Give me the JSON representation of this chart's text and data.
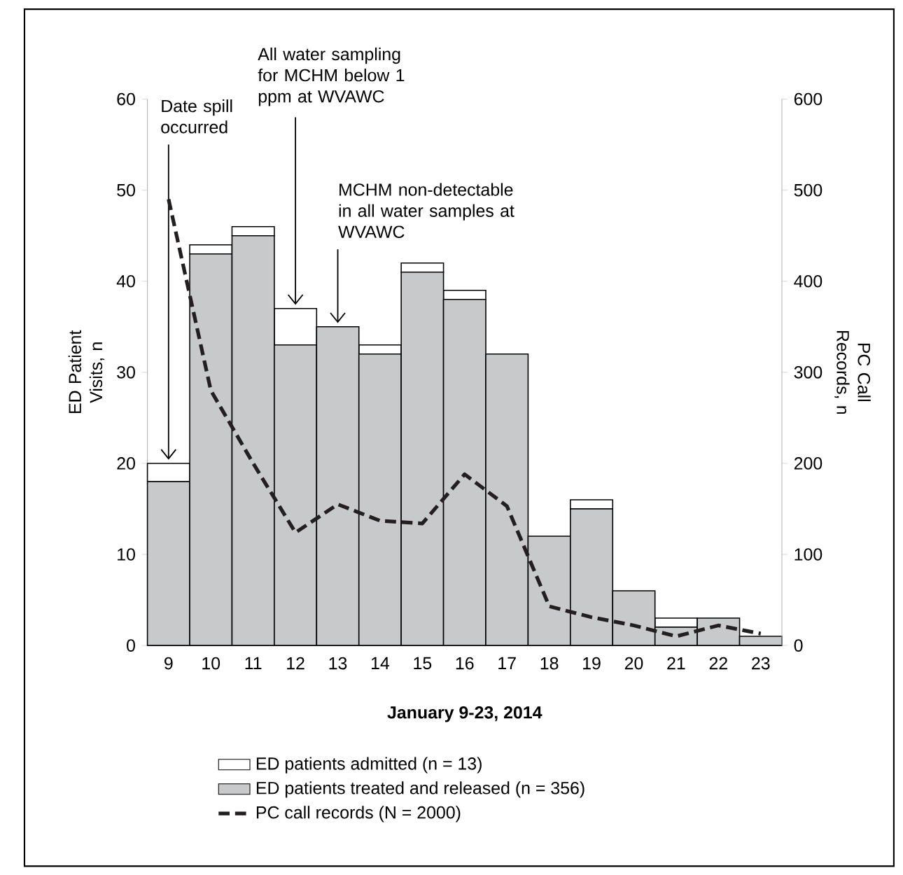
{
  "chart_data": {
    "type": "bar",
    "stacked": true,
    "xlabel": "January 9-23, 2014",
    "ylabel": "ED Patient Visits, n",
    "y2label": "PC Call Records, n",
    "categories": [
      "9",
      "10",
      "11",
      "12",
      "13",
      "14",
      "15",
      "16",
      "17",
      "18",
      "19",
      "20",
      "21",
      "22",
      "23"
    ],
    "ylim": [
      0,
      60
    ],
    "yticks": [
      0,
      10,
      20,
      30,
      40,
      50,
      60
    ],
    "y2lim": [
      0,
      600
    ],
    "y2ticks": [
      0,
      100,
      200,
      300,
      400,
      500,
      600
    ],
    "legend": "bottom",
    "grid": false,
    "series": [
      {
        "name": "ED patients treated and released (n = 356)",
        "color": "#c8c9cb",
        "values": [
          18,
          43,
          45,
          33,
          35,
          32,
          41,
          38,
          32,
          12,
          15,
          6,
          2,
          3,
          1
        ]
      },
      {
        "name": "ED patients admitted (n = 13)",
        "color": "#ffffff",
        "values": [
          2,
          1,
          1,
          4,
          0,
          1,
          1,
          1,
          0,
          0,
          1,
          0,
          1,
          0,
          0
        ]
      },
      {
        "name": "PC call records (N = 2000)",
        "type": "line",
        "axis": "y2",
        "color": "#231f20",
        "line_style": "dashed",
        "marker": "none",
        "values": [
          490,
          280,
          200,
          124,
          155,
          137,
          134,
          188,
          153,
          43,
          31,
          22,
          10,
          22,
          13
        ]
      }
    ],
    "annotations": [
      {
        "text": "Date spill occurred",
        "x": "9",
        "y": 20
      },
      {
        "text": "All water sampling for MCHM below 1 ppm at WVAWC",
        "x": "12",
        "y": 37
      },
      {
        "text": "MCHM non-detectable in all water samples at WVAWC",
        "x": "13",
        "y": 35
      }
    ]
  }
}
